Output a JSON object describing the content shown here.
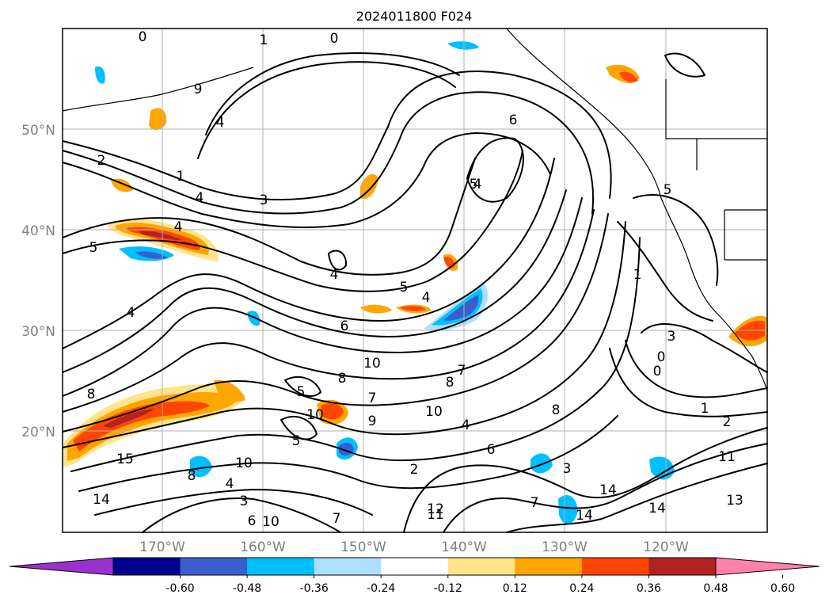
{
  "title": "2024011800 F024",
  "lat_labels": [
    "50°N",
    "40°N",
    "30°N",
    "20°N"
  ],
  "lon_labels": [
    "170°W",
    "160°W",
    "150°W",
    "140°W",
    "130°W",
    "120°W"
  ],
  "colorbar": {
    "ticks": [
      "-0.60",
      "-0.48",
      "-0.36",
      "-0.24",
      "-0.12",
      "0.12",
      "0.24",
      "0.36",
      "0.48",
      "0.60"
    ],
    "colors": [
      "#9932cc",
      "#000090",
      "#3a5fcd",
      "#00bfff",
      "#addfff",
      "#ffffff",
      "#ffe48a",
      "#ffa500",
      "#ff4500",
      "#b22222",
      "#ff82ab"
    ]
  },
  "contour_labels": [
    "0",
    "1",
    "0",
    "9",
    "4",
    "2",
    "1",
    "4",
    "3",
    "5",
    "4",
    "4",
    "4",
    "5",
    "4",
    "6",
    "6",
    "5",
    "8",
    "5",
    "8",
    "8",
    "7",
    "10",
    "9",
    "10",
    "4",
    "5",
    "2",
    "12",
    "14",
    "10",
    "8",
    "3",
    "6",
    "10",
    "4",
    "15",
    "14",
    "7",
    "11",
    "8",
    "14",
    "14",
    "13",
    "11",
    "1",
    "2",
    "0",
    "0",
    "3",
    "5",
    "1",
    "6",
    "4",
    "7",
    "7",
    "3",
    "10"
  ]
}
